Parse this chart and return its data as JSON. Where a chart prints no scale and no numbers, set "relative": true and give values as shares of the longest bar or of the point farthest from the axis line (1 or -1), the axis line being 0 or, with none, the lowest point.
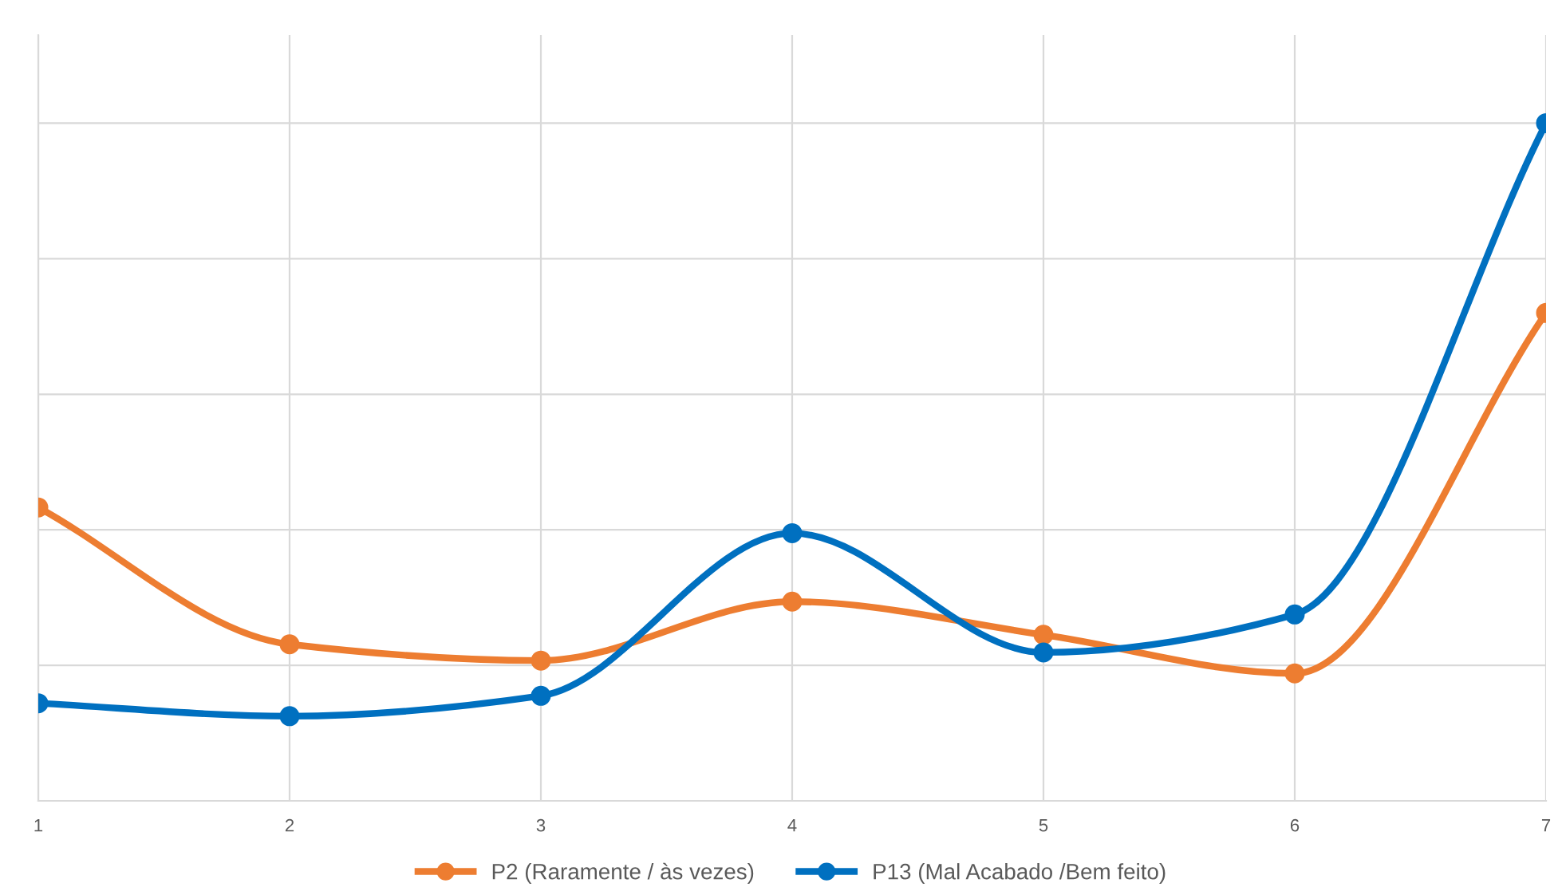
{
  "chart_data": {
    "type": "line",
    "relative": true,
    "x": [
      1,
      2,
      3,
      4,
      5,
      6,
      7
    ],
    "xlim": [
      1,
      7
    ],
    "xticks": [
      1,
      2,
      3,
      4,
      5,
      6,
      7
    ],
    "series": [
      {
        "name": "P2 (Raramente / às vezes)",
        "color": "#ed7d31",
        "values": [
          0.433,
          0.231,
          0.207,
          0.294,
          0.245,
          0.188,
          0.72
        ]
      },
      {
        "name": "P13 (Mal Acabado /Bem feito)",
        "color": "#0070c0",
        "values": [
          0.144,
          0.125,
          0.155,
          0.395,
          0.219,
          0.275,
          1.0
        ]
      }
    ],
    "marker": "circle",
    "line_style": "solid",
    "grid": true,
    "legend": "bottom"
  }
}
